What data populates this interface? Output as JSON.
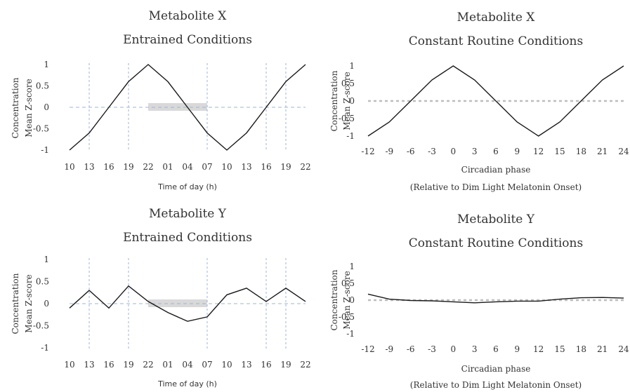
{
  "chart_data": [
    {
      "type": "line",
      "title": [
        "Metabolite X",
        "Entrained Conditions"
      ],
      "xlabel": [
        "Time of day (h)"
      ],
      "ylabel": [
        "Concentration",
        "Mean Z-score"
      ],
      "categories": [
        "10",
        "13",
        "16",
        "19",
        "22",
        "01",
        "04",
        "07",
        "10",
        "13",
        "16",
        "19",
        "22"
      ],
      "values": [
        -1,
        -0.6,
        0,
        0.6,
        1,
        0.6,
        0,
        -0.6,
        -1,
        -0.6,
        0,
        0.6,
        1
      ],
      "ylim": [
        -1,
        1
      ],
      "yticks": [
        "1",
        "0.5",
        "0",
        "-0.5",
        "-1"
      ],
      "vlines_at": [
        1,
        3,
        7,
        10,
        11
      ],
      "shaded_band": [
        4,
        7
      ],
      "zero_line": "dashed blue"
    },
    {
      "type": "line",
      "title": [
        "Metabolite X",
        "Constant Routine Conditions"
      ],
      "xlabel": [
        "Circadian phase",
        "(Relative to Dim Light Melatonin Onset)"
      ],
      "ylabel": [
        "Concentration",
        "Mean Z-score"
      ],
      "categories": [
        "-12",
        "-9",
        "-6",
        "-3",
        "0",
        "3",
        "6",
        "9",
        "12",
        "15",
        "18",
        "21",
        "24"
      ],
      "values": [
        -1,
        -0.6,
        0,
        0.6,
        1,
        0.6,
        0,
        -0.6,
        -1,
        -0.6,
        0,
        0.6,
        1
      ],
      "ylim": [
        -1,
        1
      ],
      "yticks": [
        "1",
        "0.5",
        "0",
        "-0.5",
        "-1"
      ],
      "zero_line": "dotted gray"
    },
    {
      "type": "line",
      "title": [
        "Metabolite Y",
        "Entrained Conditions"
      ],
      "xlabel": [
        "Time of day (h)"
      ],
      "ylabel": [
        "Concentration",
        "Mean Z-score"
      ],
      "categories": [
        "10",
        "13",
        "16",
        "19",
        "22",
        "01",
        "04",
        "07",
        "10",
        "13",
        "16",
        "19",
        "22"
      ],
      "values": [
        -0.1,
        0.3,
        -0.1,
        0.4,
        0.05,
        -0.2,
        -0.4,
        -0.3,
        0.2,
        0.35,
        0.05,
        0.35,
        0.05
      ],
      "ylim": [
        -1,
        1
      ],
      "yticks": [
        "1",
        "0.5",
        "0",
        "-0.5",
        "-1"
      ],
      "vlines_at": [
        1,
        3,
        7,
        10,
        11
      ],
      "shaded_band": [
        4,
        7
      ],
      "zero_line": "dashed blue"
    },
    {
      "type": "line",
      "title": [
        "Metabolite Y",
        "Constant Routine Conditions"
      ],
      "xlabel": [
        "Circadian phase",
        "(Relative to Dim Light Melatonin Onset)"
      ],
      "ylabel": [
        "Concentration",
        "Mean Z-score"
      ],
      "categories": [
        "-12",
        "-9",
        "-6",
        "-3",
        "0",
        "3",
        "6",
        "9",
        "12",
        "15",
        "18",
        "21",
        "24"
      ],
      "values": [
        0.18,
        0.03,
        -0.01,
        -0.02,
        -0.05,
        -0.08,
        -0.05,
        -0.03,
        -0.03,
        0.03,
        0.07,
        0.08,
        0.06
      ],
      "ylim": [
        -1,
        1
      ],
      "yticks": [
        "1",
        "0.5",
        "0",
        "-0.5",
        "-1"
      ],
      "zero_line": "dotted gray"
    }
  ]
}
